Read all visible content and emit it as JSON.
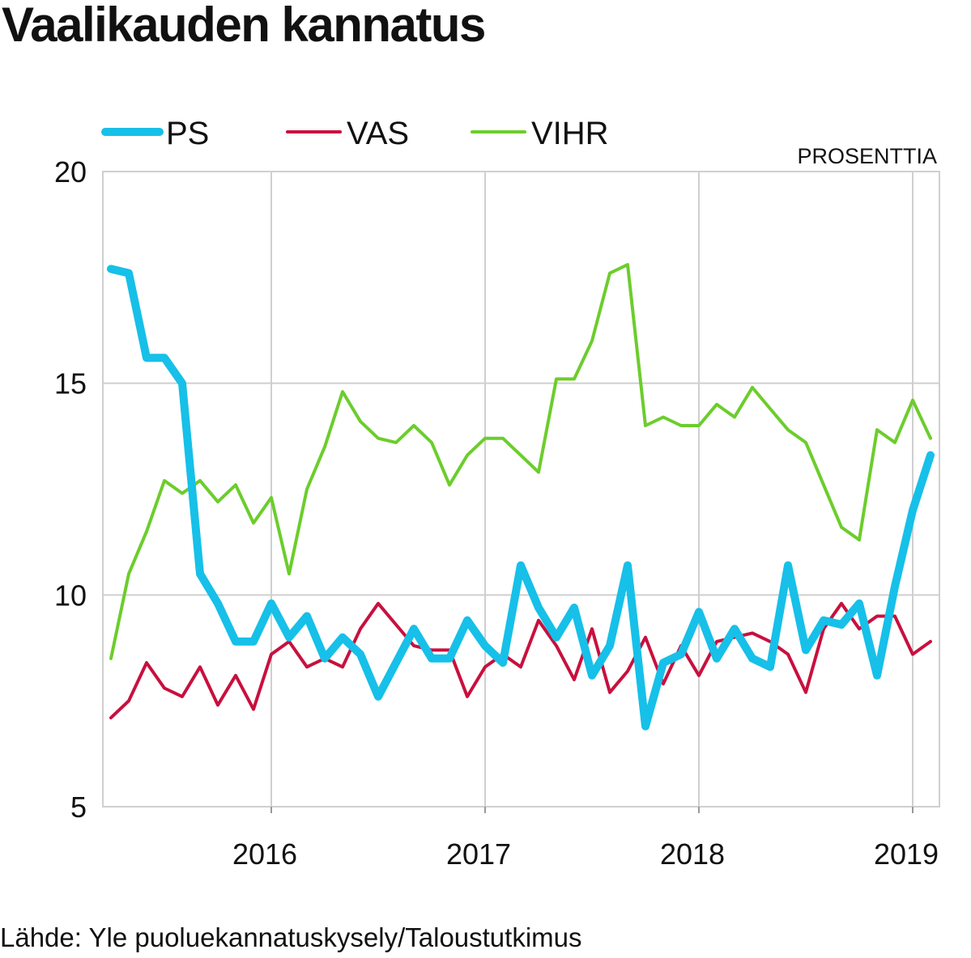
{
  "title": "Vaalikauden kannatus",
  "source": "Lähde: Yle puoluekannatuskysely/Taloustutkimus",
  "chart_data": {
    "type": "line",
    "title": "Vaalikauden kannatus",
    "unit_label": "PROSENTTIA",
    "xlabel": "",
    "ylabel": "",
    "ylim": [
      5,
      20
    ],
    "yticks": [
      5,
      10,
      15,
      20
    ],
    "xticks": [
      {
        "label": "2016",
        "month": 9
      },
      {
        "label": "2017",
        "month": 21
      },
      {
        "label": "2018",
        "month": 33
      },
      {
        "label": "2019",
        "month": 45
      }
    ],
    "x_start_month": 0,
    "x_end_month": 46,
    "legend": "top",
    "grid": true,
    "series": [
      {
        "name": "PS",
        "color": "#16c0e8",
        "width": 10,
        "values": [
          17.7,
          17.6,
          15.6,
          15.6,
          15.0,
          10.5,
          9.8,
          8.9,
          8.9,
          9.8,
          9.0,
          9.5,
          8.5,
          9.0,
          8.6,
          7.6,
          8.4,
          9.2,
          8.5,
          8.5,
          9.4,
          8.8,
          8.4,
          10.7,
          9.7,
          9.0,
          9.7,
          8.1,
          8.8,
          10.7,
          6.9,
          8.4,
          8.6,
          9.6,
          8.5,
          9.2,
          8.5,
          8.3,
          10.7,
          8.7,
          9.4,
          9.3,
          9.8,
          8.1,
          10.2,
          12.0,
          13.3
        ]
      },
      {
        "name": "VAS",
        "color": "#c8103e",
        "width": 4,
        "values": [
          7.1,
          7.5,
          8.4,
          7.8,
          7.6,
          8.3,
          7.4,
          8.1,
          7.3,
          8.6,
          8.9,
          8.3,
          8.5,
          8.3,
          9.2,
          9.8,
          9.3,
          8.8,
          8.7,
          8.7,
          7.6,
          8.3,
          8.6,
          8.3,
          9.4,
          8.8,
          8.0,
          9.2,
          7.7,
          8.2,
          9.0,
          7.9,
          8.8,
          8.1,
          8.9,
          9.0,
          9.1,
          8.9,
          8.6,
          7.7,
          9.2,
          9.8,
          9.2,
          9.5,
          9.5,
          8.6,
          8.9
        ]
      },
      {
        "name": "VIHR",
        "color": "#6ccd2c",
        "width": 4,
        "values": [
          8.5,
          10.5,
          11.5,
          12.7,
          12.4,
          12.7,
          12.2,
          12.6,
          11.7,
          12.3,
          10.5,
          12.5,
          13.5,
          14.8,
          14.1,
          13.7,
          13.6,
          14.0,
          13.6,
          12.6,
          13.3,
          13.7,
          13.7,
          13.3,
          12.9,
          15.1,
          15.1,
          16.0,
          17.6,
          17.8,
          14.0,
          14.2,
          14.0,
          14.0,
          14.5,
          14.2,
          14.9,
          14.4,
          13.9,
          13.6,
          12.6,
          11.6,
          11.3,
          13.9,
          13.6,
          14.6,
          13.7
        ]
      }
    ]
  }
}
